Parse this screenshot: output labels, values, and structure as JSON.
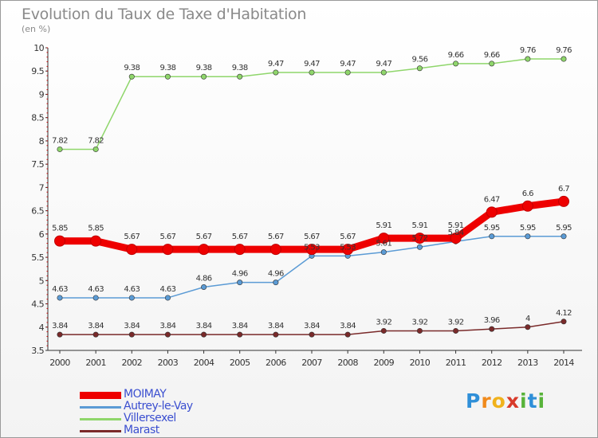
{
  "title": "Evolution du Taux de Taxe d'Habitation",
  "unit": "(en %)",
  "brand": [
    "P",
    "r",
    "o",
    "x",
    "i",
    "t",
    "i"
  ],
  "chart_data": {
    "type": "line",
    "x": [
      "2000",
      "2001",
      "2002",
      "2003",
      "2004",
      "2005",
      "2006",
      "2007",
      "2008",
      "2009",
      "2010",
      "2011",
      "2012",
      "2013",
      "2014"
    ],
    "ylim": [
      3.5,
      10
    ],
    "yticks": [
      "3.5",
      "4",
      "4.5",
      "5",
      "5.5",
      "6",
      "6.5",
      "7",
      "7.5",
      "8",
      "8.5",
      "9",
      "9.5",
      "10"
    ],
    "grid": false,
    "legend": "bottom-left",
    "series": [
      {
        "name": "MOIMAY",
        "color": "#ee0000",
        "values": [
          5.85,
          5.85,
          5.67,
          5.67,
          5.67,
          5.67,
          5.67,
          5.67,
          5.67,
          5.91,
          5.91,
          5.91,
          6.47,
          6.6,
          6.7
        ]
      },
      {
        "name": "Autrey-le-Vay",
        "color": "#5b9bd5",
        "values": [
          4.63,
          4.63,
          4.63,
          4.63,
          4.86,
          4.96,
          4.96,
          5.53,
          5.53,
          5.61,
          5.72,
          5.84,
          5.95,
          5.95,
          5.95
        ]
      },
      {
        "name": "Villersexel",
        "color": "#8fd66b",
        "values": [
          7.82,
          7.82,
          9.38,
          9.38,
          9.38,
          9.38,
          9.47,
          9.47,
          9.47,
          9.47,
          9.56,
          9.66,
          9.66,
          9.76,
          9.76
        ]
      },
      {
        "name": "Marast",
        "color": "#7a2a2a",
        "values": [
          3.84,
          3.84,
          3.84,
          3.84,
          3.84,
          3.84,
          3.84,
          3.84,
          3.84,
          3.92,
          3.92,
          3.92,
          3.96,
          4,
          4.12
        ]
      }
    ],
    "data_labels": [
      [
        "5.85",
        "5.85",
        "5.67",
        "5.67",
        "5.67",
        "5.67",
        "5.67",
        "5.67",
        "5.67",
        "5.91",
        "5.91",
        "5.91",
        "6.47",
        "6.6",
        "6.7"
      ],
      [
        "4.63",
        "4.63",
        "4.63",
        "4.63",
        "4.86",
        "4.96",
        "4.96",
        "5.53",
        "5.53",
        "5.61",
        "5.72",
        "5.84",
        "5.95",
        "5.95",
        "5.95"
      ],
      [
        "7.82",
        "7.82",
        "9.38",
        "9.38",
        "9.38",
        "9.38",
        "9.47",
        "9.47",
        "9.47",
        "9.47",
        "9.56",
        "9.66",
        "9.66",
        "9.76",
        "9.76"
      ],
      [
        "3.84",
        "3.84",
        "3.84",
        "3.84",
        "3.84",
        "3.84",
        "3.84",
        "3.84",
        "3.84",
        "3.92",
        "3.92",
        "3.92",
        "3.96",
        "4",
        "4.12"
      ]
    ]
  }
}
